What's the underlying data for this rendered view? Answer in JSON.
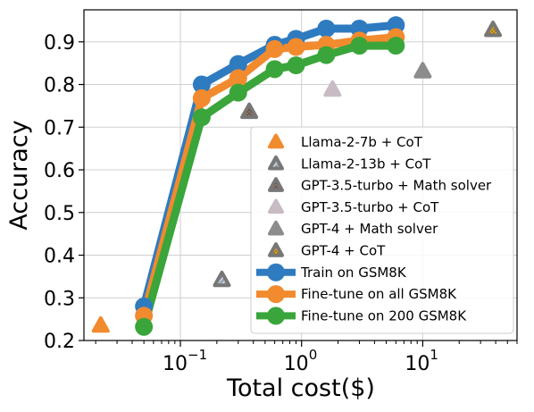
{
  "chart_data": {
    "type": "line",
    "title": "",
    "xlabel": "Total cost($)",
    "ylabel": "Accuracy",
    "x_scale": "log",
    "xlim": [
      0.016,
      60
    ],
    "ylim": [
      0.2,
      0.975
    ],
    "x_ticks": [
      {
        "value": 0.1,
        "base": "10",
        "exp": "−1"
      },
      {
        "value": 1,
        "base": "10",
        "exp": "0"
      },
      {
        "value": 10,
        "base": "10",
        "exp": "1"
      }
    ],
    "y_ticks": [
      {
        "value": 0.2,
        "label": "0.2"
      },
      {
        "value": 0.3,
        "label": "0.3"
      },
      {
        "value": 0.4,
        "label": "0.4"
      },
      {
        "value": 0.5,
        "label": "0.5"
      },
      {
        "value": 0.6,
        "label": "0.6"
      },
      {
        "value": 0.7,
        "label": "0.7"
      },
      {
        "value": 0.8,
        "label": "0.8"
      },
      {
        "value": 0.9,
        "label": "0.9"
      }
    ],
    "grid": true,
    "legend_position": "lower-right",
    "point_series": [
      {
        "name": "Llama-2-7b + CoT",
        "color": "#f28a2e",
        "pattern": "plain",
        "points": [
          {
            "x": 0.022,
            "y": 0.235
          }
        ]
      },
      {
        "name": "Llama-2-13b + CoT",
        "color": "#9aa3b5",
        "pattern": "hatch",
        "points": [
          {
            "x": 0.22,
            "y": 0.342
          }
        ]
      },
      {
        "name": "GPT-3.5-turbo + Math solver",
        "color": "#8a7466",
        "pattern": "dots",
        "points": [
          {
            "x": 0.37,
            "y": 0.736
          }
        ]
      },
      {
        "name": "GPT-3.5-turbo + CoT",
        "color": "#c8bcc4",
        "pattern": "plain",
        "points": [
          {
            "x": 1.8,
            "y": 0.788
          }
        ]
      },
      {
        "name": "GPT-4 + Math solver",
        "color": "#8c8c8c",
        "pattern": "plain",
        "points": [
          {
            "x": 10,
            "y": 0.831
          }
        ]
      },
      {
        "name": "GPT-4 + CoT",
        "color": "#d4a02a",
        "pattern": "dots",
        "points": [
          {
            "x": 38,
            "y": 0.928
          }
        ]
      }
    ],
    "line_series": [
      {
        "name": "Train on GSM8K",
        "color": "#2f7bbf",
        "points": [
          {
            "x": 0.05,
            "y": 0.28
          },
          {
            "x": 0.15,
            "y": 0.8
          },
          {
            "x": 0.3,
            "y": 0.848
          },
          {
            "x": 0.6,
            "y": 0.893
          },
          {
            "x": 0.9,
            "y": 0.907
          },
          {
            "x": 1.6,
            "y": 0.931
          },
          {
            "x": 3,
            "y": 0.931
          },
          {
            "x": 6,
            "y": 0.939
          }
        ]
      },
      {
        "name": "Fine-tune on all GSM8K",
        "color": "#f28a2e",
        "points": [
          {
            "x": 0.05,
            "y": 0.258
          },
          {
            "x": 0.15,
            "y": 0.768
          },
          {
            "x": 0.3,
            "y": 0.815
          },
          {
            "x": 0.6,
            "y": 0.883
          },
          {
            "x": 0.9,
            "y": 0.888
          },
          {
            "x": 1.6,
            "y": 0.893
          },
          {
            "x": 3,
            "y": 0.903
          },
          {
            "x": 6,
            "y": 0.911
          }
        ]
      },
      {
        "name": "Fine-tune on 200 GSM8K",
        "color": "#3aa53a",
        "points": [
          {
            "x": 0.05,
            "y": 0.232
          },
          {
            "x": 0.15,
            "y": 0.723
          },
          {
            "x": 0.3,
            "y": 0.781
          },
          {
            "x": 0.6,
            "y": 0.836
          },
          {
            "x": 0.9,
            "y": 0.845
          },
          {
            "x": 1.6,
            "y": 0.869
          },
          {
            "x": 3,
            "y": 0.891
          },
          {
            "x": 6,
            "y": 0.891
          }
        ]
      }
    ]
  }
}
